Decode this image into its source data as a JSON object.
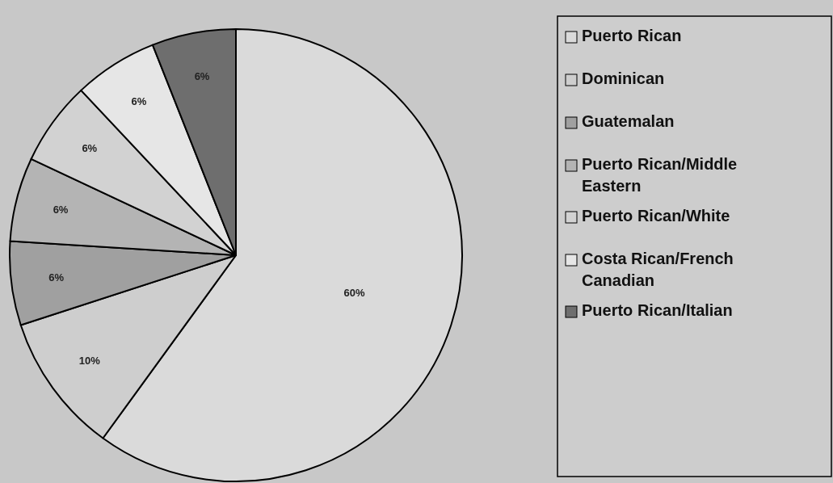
{
  "chart_data": {
    "type": "pie",
    "categories": [
      "Puerto Rican",
      "Dominican",
      "Guatemalan",
      "Puerto Rican/Middle Eastern",
      "Puerto Rican/White",
      "Costa Rican/French Canadian",
      "Puerto Rican/Italian"
    ],
    "values": [
      60,
      10,
      6,
      6,
      6,
      6,
      6
    ],
    "colors": [
      "#dadada",
      "#cecece",
      "#a0a0a0",
      "#b4b4b4",
      "#d2d2d2",
      "#e6e6e6",
      "#6e6e6e"
    ],
    "value_labels": [
      "60%",
      "10%",
      "6%",
      "6%",
      "6%",
      "6%",
      "6%"
    ],
    "legend": "right"
  }
}
